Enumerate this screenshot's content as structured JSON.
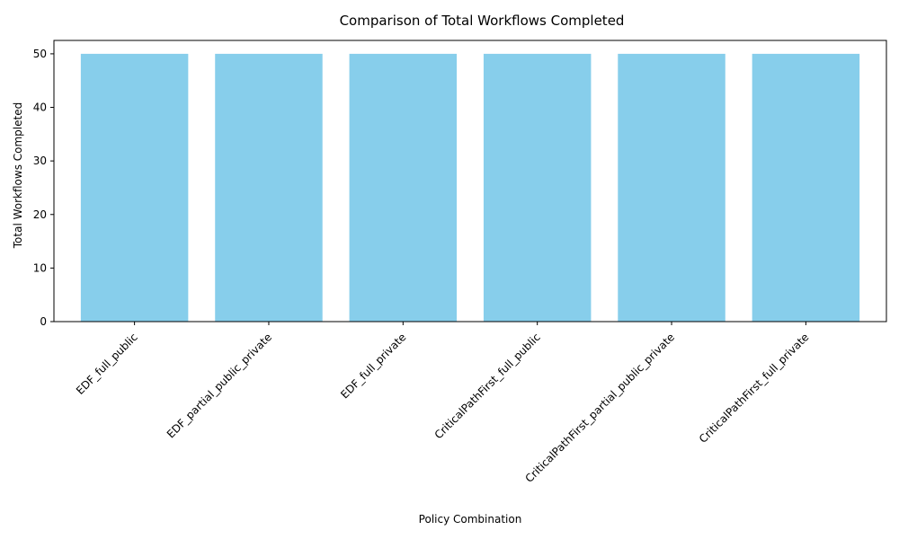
{
  "chart_data": {
    "type": "bar",
    "title": "Comparison of Total Workflows Completed",
    "xlabel": "Policy Combination",
    "ylabel": "Total Workflows Completed",
    "categories": [
      "EDF_full_public",
      "EDF_partial_public_private",
      "EDF_full_private",
      "CriticalPathFirst_full_public",
      "CriticalPathFirst_partial_public_private",
      "CriticalPathFirst_full_private"
    ],
    "values": [
      50,
      50,
      50,
      50,
      50,
      50
    ],
    "ylim": [
      0,
      52.5
    ],
    "yticks": [
      0,
      10,
      20,
      30,
      40,
      50
    ],
    "bar_color": "#87ceeb",
    "grid": false,
    "legend": "none"
  }
}
